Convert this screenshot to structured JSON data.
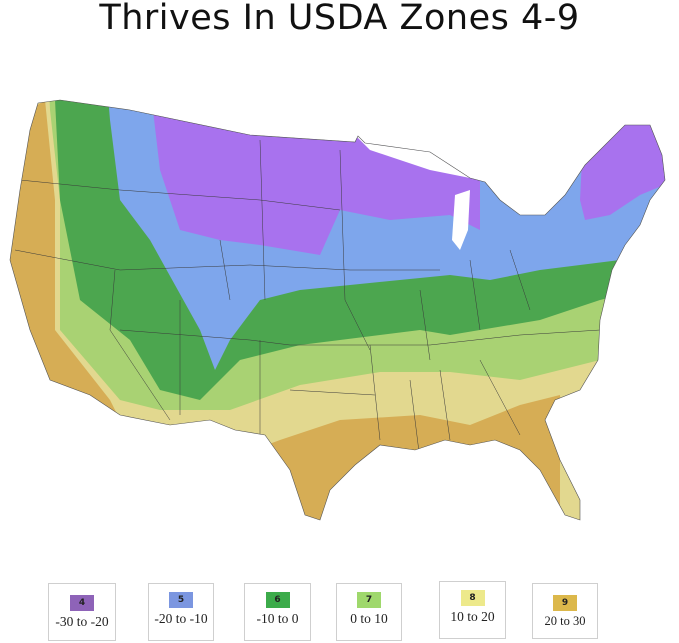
{
  "title": "Thrives In USDA Zones 4-9",
  "legend": [
    {
      "zone": "4",
      "range": "-30 to -20",
      "color": "#8e63b8"
    },
    {
      "zone": "5",
      "range": "-20 to -10",
      "color": "#7b96e0"
    },
    {
      "zone": "6",
      "range": "-10 to 0",
      "color": "#3cab4a"
    },
    {
      "zone": "7",
      "range": "0 to 10",
      "color": "#9fd86c"
    },
    {
      "zone": "8",
      "range": "10 to 20",
      "color": "#ede98b"
    },
    {
      "zone": "9",
      "range": "20 to 30",
      "color": "#dcb84b"
    }
  ],
  "map_colors": {
    "zone4": "#a872ee",
    "zone5": "#7ea6ec",
    "zone6": "#4ca64f",
    "zone7": "#a9d273",
    "zone8": "#e2d88f",
    "zone9": "#d6ad55"
  }
}
